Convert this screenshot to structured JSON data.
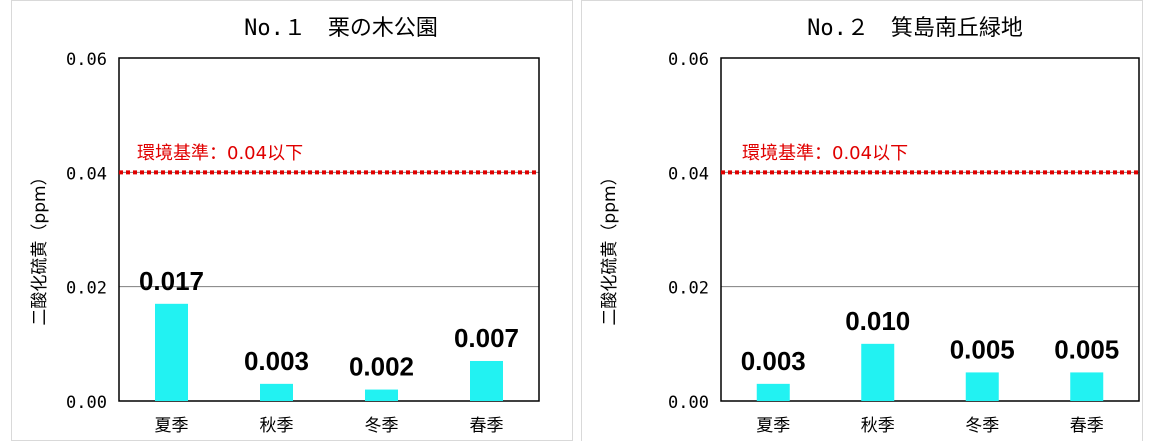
{
  "colors": {
    "bar": "#22F2F2",
    "threshold": "#E00000",
    "axis": "#000000",
    "grid": "#7f7f7f"
  },
  "chart_data": [
    {
      "type": "bar",
      "title": "No.１　栗の木公園",
      "ylabel": "二酸化硫黄（ppm）",
      "xlabel": "",
      "categories": [
        "夏季",
        "秋季",
        "冬季",
        "春季"
      ],
      "values": [
        0.017,
        0.003,
        0.002,
        0.007
      ],
      "value_labels": [
        "0.017",
        "0.003",
        "0.002",
        "0.007"
      ],
      "ylim": [
        0,
        0.06
      ],
      "y_ticks": [
        0,
        0.02,
        0.04,
        0.06
      ],
      "y_tick_labels": [
        "0.00",
        "0.02",
        "0.04",
        "0.06"
      ],
      "grid": "y-major",
      "threshold": {
        "value": 0.04,
        "label": "環境基準：0.04以下"
      }
    },
    {
      "type": "bar",
      "title": "No.２　箕島南丘緑地",
      "ylabel": "二酸化硫黄（ppm）",
      "xlabel": "",
      "categories": [
        "夏季",
        "秋季",
        "冬季",
        "春季"
      ],
      "values": [
        0.003,
        0.01,
        0.005,
        0.005
      ],
      "value_labels": [
        "0.003",
        "0.010",
        "0.005",
        "0.005"
      ],
      "ylim": [
        0,
        0.06
      ],
      "y_ticks": [
        0,
        0.02,
        0.04,
        0.06
      ],
      "y_tick_labels": [
        "0.00",
        "0.02",
        "0.04",
        "0.06"
      ],
      "grid": "y-major",
      "threshold": {
        "value": 0.04,
        "label": "環境基準：0.04以下"
      }
    }
  ]
}
